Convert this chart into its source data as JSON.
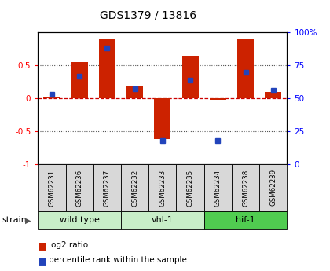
{
  "title": "GDS1379 / 13816",
  "samples": [
    "GSM62231",
    "GSM62236",
    "GSM62237",
    "GSM62232",
    "GSM62233",
    "GSM62235",
    "GSM62234",
    "GSM62238",
    "GSM62239"
  ],
  "log2_ratio": [
    0.02,
    0.55,
    0.9,
    0.18,
    -0.62,
    0.65,
    -0.02,
    0.9,
    0.1
  ],
  "percentile_rank": [
    53,
    67,
    88,
    57,
    18,
    64,
    18,
    70,
    56
  ],
  "group_colors": [
    "#c8eec8",
    "#c8eec8",
    "#50cc50"
  ],
  "group_labels": [
    "wild type",
    "vhl-1",
    "hif-1"
  ],
  "group_ranges": [
    [
      0,
      3
    ],
    [
      3,
      6
    ],
    [
      6,
      9
    ]
  ],
  "ylim_left": [
    -1,
    1
  ],
  "ylim_right": [
    0,
    100
  ],
  "yticks_left": [
    -1,
    -0.5,
    0,
    0.5
  ],
  "ytick_labels_left": [
    "-1",
    "-0.5",
    "0",
    "0.5"
  ],
  "yticks_right": [
    0,
    25,
    50,
    75,
    100
  ],
  "ytick_labels_right": [
    "0",
    "25",
    "50",
    "75",
    "100%"
  ],
  "bar_color": "#cc2200",
  "dot_color": "#2244bb",
  "hline0_color": "#cc0000",
  "dot_color_hline": "#cc4444",
  "grid_color": "#555555",
  "sample_box_color": "#d8d8d8",
  "legend_bar_label": "log2 ratio",
  "legend_dot_label": "percentile rank within the sample",
  "strain_label": "strain"
}
